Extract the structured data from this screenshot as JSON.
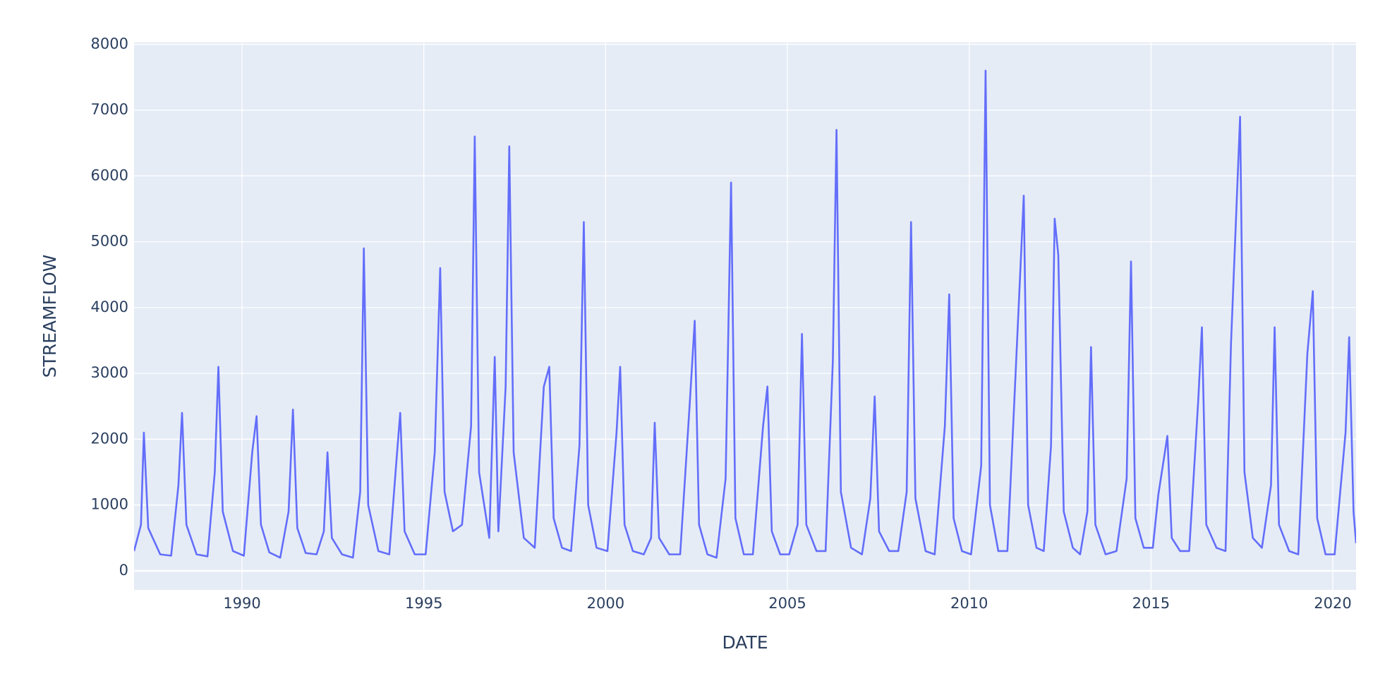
{
  "chart_data": {
    "type": "line",
    "xlabel": "DATE",
    "ylabel": "STREAMFLOW",
    "xlim": [
      1987.03,
      2020.64
    ],
    "ylim": [
      -290,
      8030
    ],
    "xticks": [
      1990,
      1995,
      2000,
      2005,
      2010,
      2015,
      2020
    ],
    "yticks": [
      0,
      1000,
      2000,
      3000,
      4000,
      5000,
      6000,
      7000,
      8000
    ],
    "grid": true,
    "background": "#e5ecf6",
    "series": [
      {
        "color": "#636efa",
        "x": [
          1987.03,
          1987.22,
          1987.3,
          1987.42,
          1987.75,
          1988.05,
          1988.25,
          1988.35,
          1988.47,
          1988.75,
          1989.05,
          1989.25,
          1989.35,
          1989.47,
          1989.75,
          1990.05,
          1990.28,
          1990.4,
          1990.52,
          1990.75,
          1991.05,
          1991.28,
          1991.4,
          1991.52,
          1991.75,
          1992.05,
          1992.25,
          1992.35,
          1992.47,
          1992.75,
          1993.05,
          1993.25,
          1993.35,
          1993.47,
          1993.75,
          1994.05,
          1994.25,
          1994.35,
          1994.47,
          1994.75,
          1995.05,
          1995.3,
          1995.45,
          1995.57,
          1995.8,
          1996.05,
          1996.3,
          1996.4,
          1996.52,
          1996.8,
          1996.95,
          1997.05,
          1997.25,
          1997.35,
          1997.47,
          1997.75,
          1998.05,
          1998.3,
          1998.45,
          1998.57,
          1998.8,
          1999.05,
          1999.28,
          1999.4,
          1999.52,
          1999.75,
          2000.05,
          2000.3,
          2000.4,
          2000.52,
          2000.75,
          2001.05,
          2001.25,
          2001.35,
          2001.47,
          2001.75,
          2002.05,
          2002.32,
          2002.45,
          2002.57,
          2002.8,
          2003.05,
          2003.3,
          2003.45,
          2003.57,
          2003.8,
          2004.05,
          2004.33,
          2004.45,
          2004.57,
          2004.8,
          2005.05,
          2005.28,
          2005.4,
          2005.52,
          2005.8,
          2006.05,
          2006.25,
          2006.35,
          2006.47,
          2006.75,
          2007.05,
          2007.28,
          2007.4,
          2007.52,
          2007.8,
          2008.05,
          2008.28,
          2008.4,
          2008.52,
          2008.8,
          2009.05,
          2009.33,
          2009.45,
          2009.57,
          2009.8,
          2010.05,
          2010.33,
          2010.45,
          2010.57,
          2010.8,
          2011.05,
          2011.38,
          2011.5,
          2011.62,
          2011.85,
          2012.05,
          2012.25,
          2012.35,
          2012.45,
          2012.6,
          2012.85,
          2013.05,
          2013.25,
          2013.35,
          2013.47,
          2013.75,
          2014.05,
          2014.33,
          2014.45,
          2014.57,
          2014.8,
          2015.05,
          2015.2,
          2015.45,
          2015.57,
          2015.8,
          2016.05,
          2016.3,
          2016.4,
          2016.52,
          2016.8,
          2017.05,
          2017.2,
          2017.45,
          2017.57,
          2017.8,
          2018.05,
          2018.3,
          2018.4,
          2018.52,
          2018.8,
          2019.05,
          2019.3,
          2019.45,
          2019.57,
          2019.8,
          2020.05,
          2020.35,
          2020.45,
          2020.57,
          2020.64
        ],
        "values": [
          300,
          700,
          2100,
          650,
          250,
          230,
          1300,
          2400,
          700,
          250,
          220,
          1500,
          3100,
          900,
          300,
          230,
          1800,
          2350,
          700,
          280,
          200,
          900,
          2450,
          650,
          270,
          250,
          600,
          1800,
          500,
          250,
          200,
          1200,
          4900,
          1000,
          300,
          250,
          1700,
          2400,
          600,
          250,
          250,
          1800,
          4600,
          1200,
          600,
          700,
          2200,
          6600,
          1500,
          500,
          3250,
          600,
          2800,
          6450,
          1800,
          500,
          350,
          2800,
          3100,
          800,
          350,
          300,
          1900,
          5300,
          1000,
          350,
          300,
          2100,
          3100,
          700,
          300,
          250,
          500,
          2250,
          500,
          250,
          250,
          2600,
          3800,
          700,
          250,
          200,
          1400,
          5900,
          800,
          250,
          250,
          2200,
          2800,
          600,
          250,
          250,
          700,
          3600,
          700,
          300,
          300,
          3200,
          6700,
          1200,
          350,
          250,
          1100,
          2650,
          600,
          300,
          300,
          1200,
          5300,
          1100,
          300,
          250,
          2200,
          4200,
          800,
          300,
          250,
          1600,
          7600,
          1000,
          300,
          300,
          4250,
          5700,
          1000,
          350,
          300,
          1900,
          5350,
          4800,
          900,
          350,
          250,
          900,
          3400,
          700,
          250,
          300,
          1400,
          4700,
          800,
          350,
          350,
          1150,
          2050,
          500,
          300,
          300,
          2600,
          3700,
          700,
          350,
          300,
          3450,
          6900,
          1500,
          500,
          350,
          1300,
          3700,
          700,
          300,
          250,
          3300,
          4250,
          800,
          250,
          250,
          2100,
          3550,
          900,
          420
        ]
      }
    ]
  }
}
